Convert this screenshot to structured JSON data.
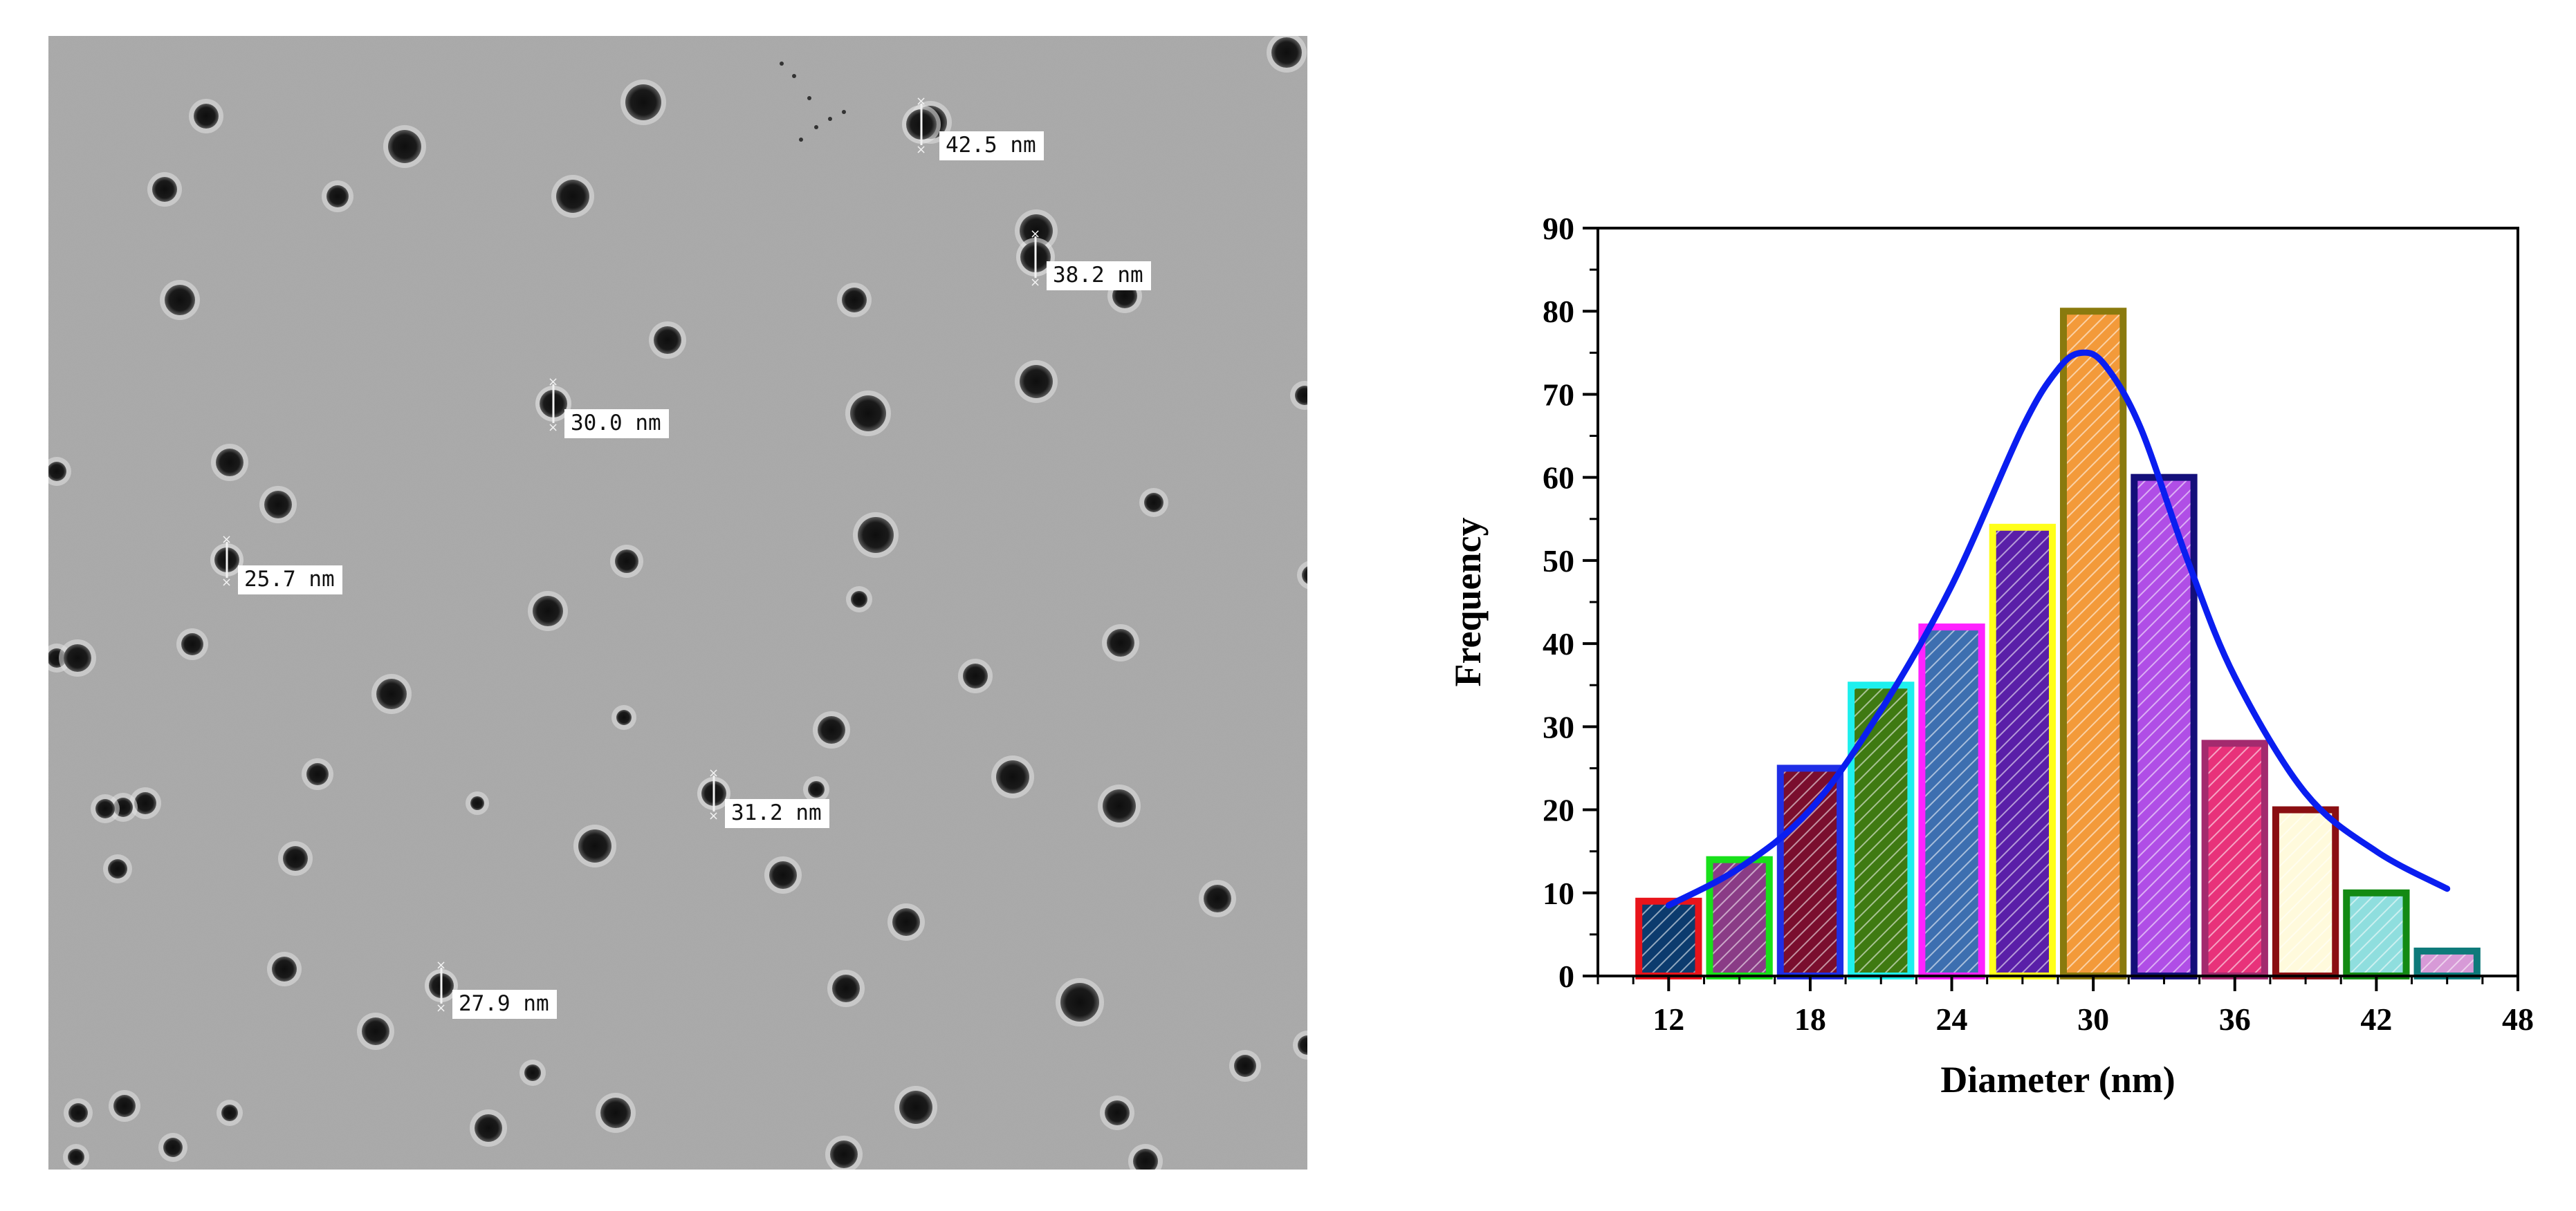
{
  "micrograph": {
    "annotations": [
      {
        "label": "42.5 nm"
      },
      {
        "label": "38.2 nm"
      },
      {
        "label": "30.0 nm"
      },
      {
        "label": "25.7 nm"
      },
      {
        "label": "31.2 nm"
      },
      {
        "label": "27.9 nm"
      }
    ]
  },
  "chart_data": {
    "type": "bar",
    "title": "",
    "xlabel": "Diameter (nm)",
    "ylabel": "Frequency",
    "xlim": [
      9,
      48
    ],
    "ylim": [
      0,
      90
    ],
    "x_ticks": [
      12,
      18,
      24,
      30,
      36,
      42,
      48
    ],
    "y_ticks": [
      0,
      10,
      20,
      30,
      40,
      50,
      60,
      70,
      80,
      90
    ],
    "bin_width": 3,
    "grid": false,
    "bars": [
      {
        "x": 12,
        "value": 9,
        "edge": "#e8141b",
        "fill": "#0c3b6e"
      },
      {
        "x": 15,
        "value": 14,
        "edge": "#18e01a",
        "fill": "#8a3c86"
      },
      {
        "x": 18,
        "value": 25,
        "edge": "#1f2ee6",
        "fill": "#7a0e2e"
      },
      {
        "x": 21,
        "value": 35,
        "edge": "#1ef0ee",
        "fill": "#3f7a12"
      },
      {
        "x": 24,
        "value": 42,
        "edge": "#ff22ff",
        "fill": "#3d6fb0"
      },
      {
        "x": 27,
        "value": 54,
        "edge": "#ffff1a",
        "fill": "#5a1fa8"
      },
      {
        "x": 30,
        "value": 80,
        "edge": "#8a7a0e",
        "fill": "#f39a3a"
      },
      {
        "x": 33,
        "value": 60,
        "edge": "#140f7a",
        "fill": "#b04ee6"
      },
      {
        "x": 36,
        "value": 28,
        "edge": "#a32a6e",
        "fill": "#e8327a"
      },
      {
        "x": 39,
        "value": 20,
        "edge": "#8a0f12",
        "fill": "#fffadc"
      },
      {
        "x": 42,
        "value": 10,
        "edge": "#138a13",
        "fill": "#8fdede"
      },
      {
        "x": 45,
        "value": 3,
        "edge": "#0e7a7a",
        "fill": "#d79ad7"
      }
    ],
    "fit_curve": {
      "type": "lorentzian",
      "color": "#0a1ef0",
      "peak_x": 29.5,
      "peak_y": 75,
      "x_range": [
        12,
        45
      ],
      "points": [
        [
          12,
          8.5
        ],
        [
          15,
          13
        ],
        [
          18,
          20
        ],
        [
          21,
          32
        ],
        [
          24,
          47
        ],
        [
          27,
          66
        ],
        [
          28.5,
          73
        ],
        [
          29.5,
          75
        ],
        [
          30.5,
          73.5
        ],
        [
          32,
          66
        ],
        [
          34,
          50
        ],
        [
          36,
          36
        ],
        [
          39,
          22
        ],
        [
          42,
          15
        ],
        [
          45,
          10.5
        ]
      ]
    }
  }
}
